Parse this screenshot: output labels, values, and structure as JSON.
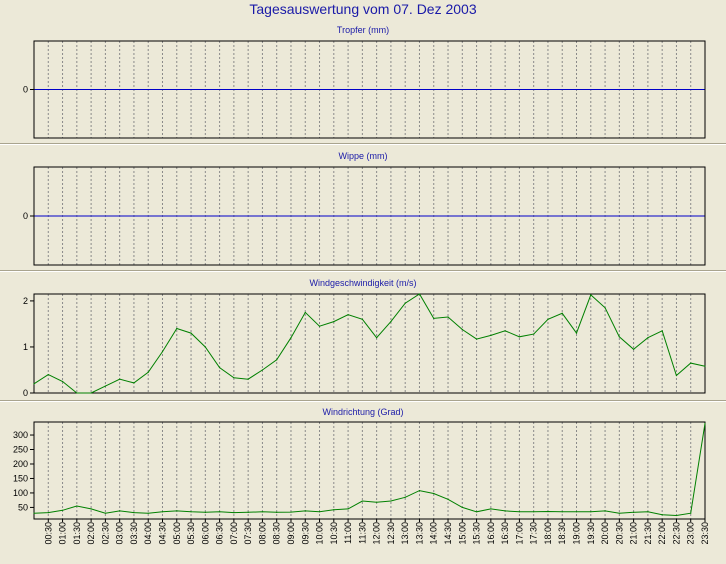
{
  "title": "Tagesauswertung vom 07. Dez 2003",
  "colors": {
    "background": "#ece9d8",
    "title": "#1a1aa8",
    "zero_line": "#0000c8",
    "series_line": "#008000",
    "plot_border": "#000000",
    "grid": "#8a8a8a"
  },
  "chart_data": [
    {
      "type": "line",
      "title": "Tropfer (mm)",
      "y_ticks": [
        0
      ],
      "ylim": [
        -1,
        1
      ],
      "grid": true,
      "series": [
        {
          "values": []
        }
      ]
    },
    {
      "type": "line",
      "title": "Wippe (mm)",
      "y_ticks": [
        0
      ],
      "ylim": [
        -1,
        1
      ],
      "grid": true,
      "series": [
        {
          "values": []
        }
      ]
    },
    {
      "type": "line",
      "title": "Windgeschwindigkeit (m/s)",
      "y_ticks": [
        0,
        1,
        2
      ],
      "ylim": [
        0,
        2.15
      ],
      "grid": true,
      "series": [
        {
          "values": [
            0.2,
            0.4,
            0.25,
            0.0,
            0.0,
            0.15,
            0.3,
            0.22,
            0.45,
            0.9,
            1.4,
            1.3,
            1.0,
            0.55,
            0.33,
            0.3,
            0.5,
            0.72,
            1.2,
            1.75,
            1.45,
            1.55,
            1.7,
            1.6,
            1.2,
            1.55,
            1.95,
            2.15,
            1.62,
            1.65,
            1.38,
            1.17,
            1.25,
            1.35,
            1.22,
            1.28,
            1.6,
            1.73,
            1.3,
            2.13,
            1.85,
            1.22,
            0.95,
            1.2,
            1.35,
            0.38,
            0.65,
            0.58
          ]
        }
      ]
    },
    {
      "type": "line",
      "title": "Windrichtung (Grad)",
      "y_ticks": [
        50,
        100,
        150,
        200,
        250,
        300
      ],
      "ylim": [
        10,
        345
      ],
      "grid": true,
      "x_tick_labels": [
        "00:30",
        "01:00",
        "01:30",
        "02:00",
        "02:30",
        "03:00",
        "03:30",
        "04:00",
        "04:30",
        "05:00",
        "05:30",
        "06:00",
        "06:30",
        "07:00",
        "07:30",
        "08:00",
        "08:30",
        "09:00",
        "09:30",
        "10:00",
        "10:30",
        "11:00",
        "11:30",
        "12:00",
        "12:30",
        "13:00",
        "13:30",
        "14:00",
        "14:30",
        "15:00",
        "15:30",
        "16:00",
        "16:30",
        "17:00",
        "17:30",
        "18:00",
        "18:30",
        "19:00",
        "19:30",
        "20:00",
        "20:30",
        "21:00",
        "21:30",
        "22:00",
        "22:30",
        "23:00",
        "23:30"
      ],
      "series": [
        {
          "values": [
            30,
            32,
            40,
            55,
            45,
            30,
            38,
            32,
            30,
            35,
            38,
            35,
            33,
            35,
            32,
            33,
            35,
            33,
            34,
            38,
            35,
            42,
            45,
            72,
            68,
            72,
            85,
            108,
            98,
            78,
            50,
            35,
            45,
            38,
            35,
            35,
            36,
            35,
            35,
            35,
            38,
            30,
            33,
            35,
            25,
            22,
            30,
            340
          ]
        }
      ]
    }
  ]
}
